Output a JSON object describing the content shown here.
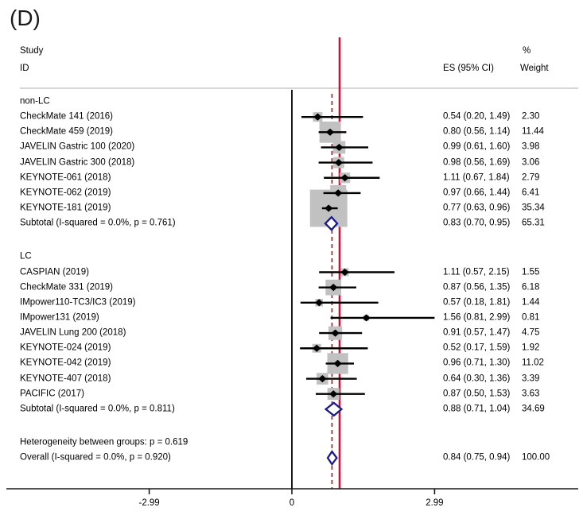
{
  "panel_label": "(D)",
  "header": {
    "study_line1": "Study",
    "study_line2": "ID",
    "es_col": "ES (95% CI)",
    "weight_line1": "%",
    "weight_line2": "Weight"
  },
  "chart_data": {
    "type": "forest",
    "x_axis": {
      "ticks": [
        -2.99,
        0,
        2.99
      ],
      "tick_labels": [
        "-2.99",
        "0",
        "2.99"
      ]
    },
    "null_line_es": 1.0,
    "overall_dashed_es": 0.84,
    "colors": {
      "box": "#c1c1c1",
      "marker": "#000000",
      "ci_line": "#000000",
      "null_line": "#cb1039",
      "overall_dashed_line": "#993636",
      "pooled_diamond_outline": "#1a1a8a",
      "pooled_diamond_fill": "#ffffff",
      "zero_line": "#1a1a1a",
      "header_rule": "#c8c8c8",
      "axis": "#1a1a1a"
    },
    "rows": [
      {
        "type": "heading",
        "label": "non-LC"
      },
      {
        "type": "study",
        "label": "CheckMate 141 (2016)",
        "es": 0.54,
        "lo": 0.2,
        "hi": 1.49,
        "es_ci": "0.54 (0.20, 1.49)",
        "weight": 2.3,
        "weight_text": "2.30"
      },
      {
        "type": "study",
        "label": "CheckMate 459 (2019)",
        "es": 0.8,
        "lo": 0.56,
        "hi": 1.14,
        "es_ci": "0.80 (0.56, 1.14)",
        "weight": 11.44,
        "weight_text": "11.44"
      },
      {
        "type": "study",
        "label": "JAVELIN Gastric 100 (2020)",
        "es": 0.99,
        "lo": 0.61,
        "hi": 1.6,
        "es_ci": "0.99 (0.61, 1.60)",
        "weight": 3.98,
        "weight_text": "3.98"
      },
      {
        "type": "study",
        "label": "JAVELIN Gastric 300 (2018)",
        "es": 0.98,
        "lo": 0.56,
        "hi": 1.69,
        "es_ci": "0.98 (0.56, 1.69)",
        "weight": 3.06,
        "weight_text": "3.06"
      },
      {
        "type": "study",
        "label": "KEYNOTE-061 (2018)",
        "es": 1.11,
        "lo": 0.67,
        "hi": 1.84,
        "es_ci": "1.11 (0.67, 1.84)",
        "weight": 2.79,
        "weight_text": "2.79"
      },
      {
        "type": "study",
        "label": "KEYNOTE-062 (2019)",
        "es": 0.97,
        "lo": 0.66,
        "hi": 1.44,
        "es_ci": "0.97 (0.66, 1.44)",
        "weight": 6.41,
        "weight_text": "6.41"
      },
      {
        "type": "study",
        "label": "KEYNOTE-181 (2019)",
        "es": 0.77,
        "lo": 0.63,
        "hi": 0.96,
        "es_ci": "0.77 (0.63, 0.96)",
        "weight": 35.34,
        "weight_text": "35.34"
      },
      {
        "type": "subtotal",
        "label": "Subtotal  (I-squared = 0.0%, p = 0.761)",
        "es": 0.83,
        "lo": 0.7,
        "hi": 0.95,
        "es_ci": "0.83 (0.70, 0.95)",
        "weight_text": "65.31"
      },
      {
        "type": "spacer"
      },
      {
        "type": "heading",
        "label": "LC"
      },
      {
        "type": "study",
        "label": "CASPIAN (2019)",
        "es": 1.11,
        "lo": 0.57,
        "hi": 2.15,
        "es_ci": "1.11 (0.57, 2.15)",
        "weight": 1.55,
        "weight_text": "1.55"
      },
      {
        "type": "study",
        "label": "CheckMate 331 (2019)",
        "es": 0.87,
        "lo": 0.56,
        "hi": 1.35,
        "es_ci": "0.87 (0.56, 1.35)",
        "weight": 6.18,
        "weight_text": "6.18"
      },
      {
        "type": "study",
        "label": "IMpower110-TC3/IC3 (2019)",
        "es": 0.57,
        "lo": 0.18,
        "hi": 1.81,
        "es_ci": "0.57 (0.18, 1.81)",
        "weight": 1.44,
        "weight_text": "1.44"
      },
      {
        "type": "study",
        "label": "IMpower131 (2019)",
        "es": 1.56,
        "lo": 0.81,
        "hi": 2.99,
        "es_ci": "1.56 (0.81, 2.99)",
        "weight": 0.81,
        "weight_text": "0.81"
      },
      {
        "type": "study",
        "label": "JAVELIN Lung 200 (2018)",
        "es": 0.91,
        "lo": 0.57,
        "hi": 1.47,
        "es_ci": "0.91 (0.57, 1.47)",
        "weight": 4.75,
        "weight_text": "4.75"
      },
      {
        "type": "study",
        "label": "KEYNOTE-024 (2019)",
        "es": 0.52,
        "lo": 0.17,
        "hi": 1.59,
        "es_ci": "0.52 (0.17, 1.59)",
        "weight": 1.92,
        "weight_text": "1.92"
      },
      {
        "type": "study",
        "label": "KEYNOTE-042 (2019)",
        "es": 0.96,
        "lo": 0.71,
        "hi": 1.3,
        "es_ci": "0.96 (0.71, 1.30)",
        "weight": 11.02,
        "weight_text": "11.02"
      },
      {
        "type": "study",
        "label": "KEYNOTE-407 (2018)",
        "es": 0.64,
        "lo": 0.3,
        "hi": 1.36,
        "es_ci": "0.64 (0.30, 1.36)",
        "weight": 3.39,
        "weight_text": "3.39"
      },
      {
        "type": "study",
        "label": "PACIFIC (2017)",
        "es": 0.87,
        "lo": 0.5,
        "hi": 1.53,
        "es_ci": "0.87 (0.50, 1.53)",
        "weight": 3.63,
        "weight_text": "3.63"
      },
      {
        "type": "subtotal",
        "label": "Subtotal  (I-squared = 0.0%, p = 0.811)",
        "es": 0.88,
        "lo": 0.71,
        "hi": 1.04,
        "es_ci": "0.88 (0.71, 1.04)",
        "weight_text": "34.69"
      },
      {
        "type": "spacer"
      },
      {
        "type": "text",
        "label": "Heterogeneity between groups: p = 0.619"
      },
      {
        "type": "overall",
        "label": "Overall  (I-squared = 0.0%, p = 0.920)",
        "es": 0.84,
        "lo": 0.75,
        "hi": 0.94,
        "es_ci": "0.84 (0.75, 0.94)",
        "weight_text": "100.00"
      }
    ]
  }
}
